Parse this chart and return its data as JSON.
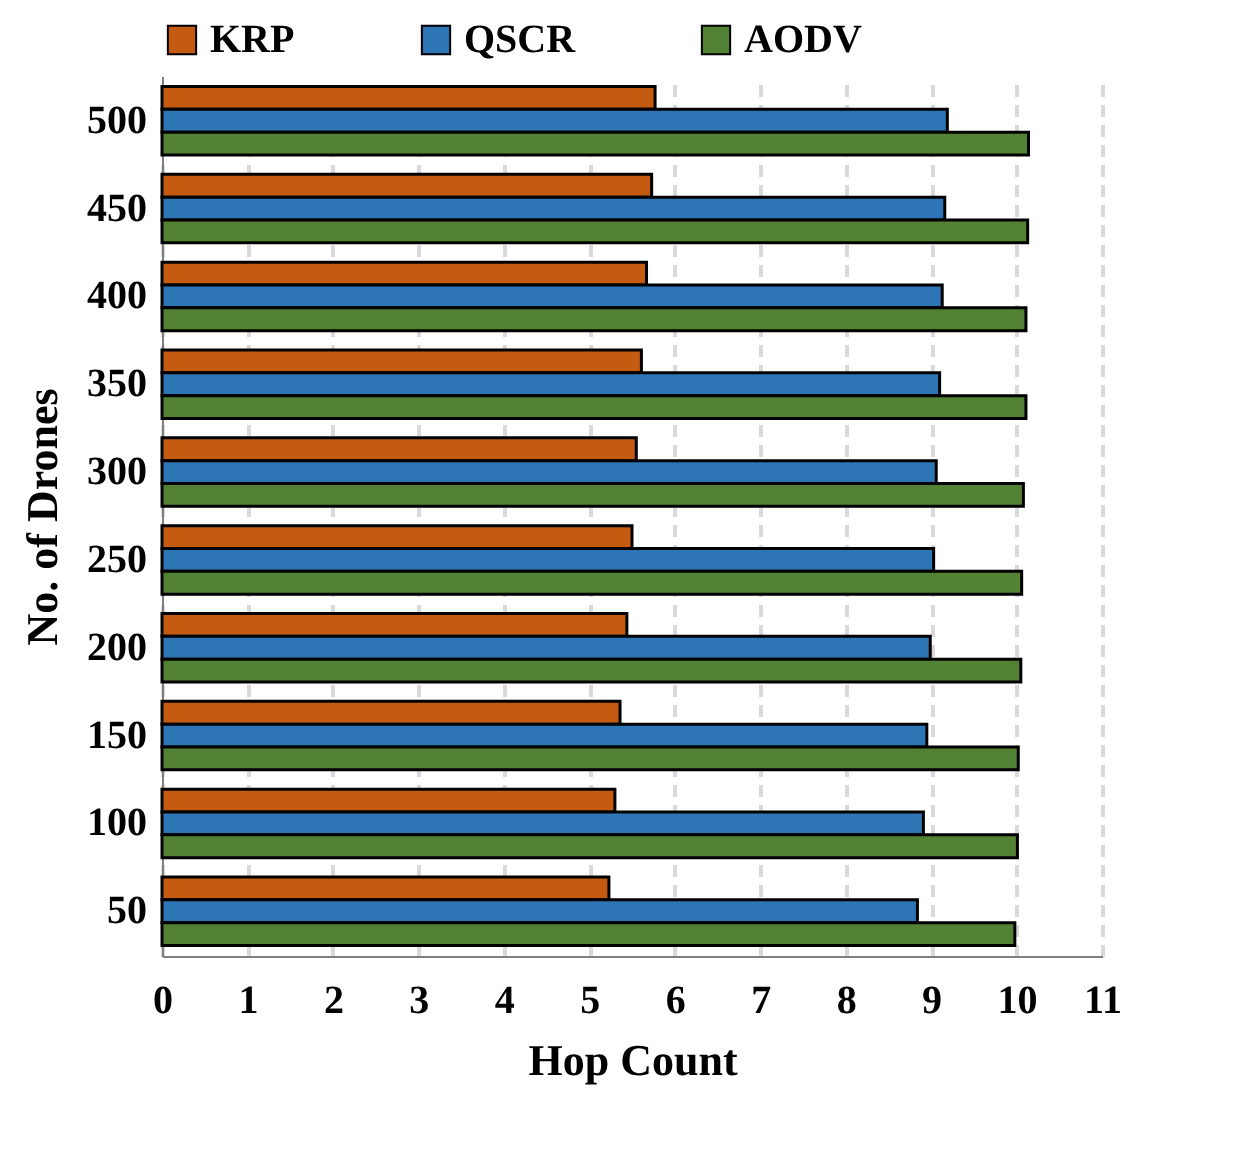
{
  "chart_data": {
    "type": "bar",
    "orientation": "horizontal",
    "xlabel": "Hop Count",
    "ylabel": "No. of Drones",
    "categories": [
      "500",
      "450",
      "400",
      "350",
      "300",
      "250",
      "200",
      "150",
      "100",
      "50"
    ],
    "series": [
      {
        "name": "KRP",
        "color": "#c55a11",
        "values": [
          5.77,
          5.73,
          5.67,
          5.61,
          5.55,
          5.5,
          5.44,
          5.36,
          5.3,
          5.23
        ]
      },
      {
        "name": "QSCR",
        "color": "#2e75b6",
        "values": [
          9.19,
          9.16,
          9.13,
          9.1,
          9.06,
          9.03,
          8.99,
          8.95,
          8.91,
          8.84
        ]
      },
      {
        "name": "AODV",
        "color": "#548235",
        "values": [
          10.14,
          10.13,
          10.11,
          10.11,
          10.08,
          10.06,
          10.05,
          10.02,
          10.01,
          9.98
        ]
      }
    ],
    "xlim": [
      0,
      11
    ],
    "xticks": [
      0,
      1,
      2,
      3,
      4,
      5,
      6,
      7,
      8,
      9,
      10,
      11
    ],
    "grid": "x",
    "legend": "top"
  }
}
